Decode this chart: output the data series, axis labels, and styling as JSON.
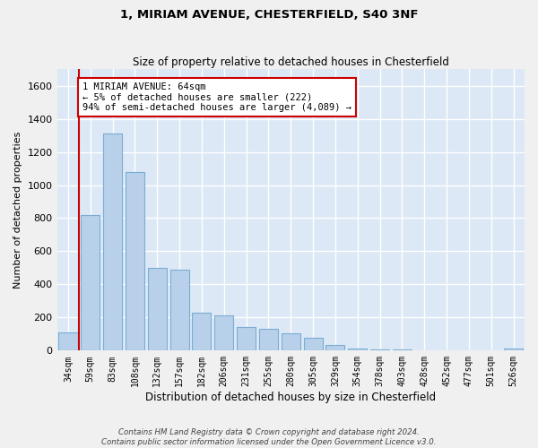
{
  "title": "1, MIRIAM AVENUE, CHESTERFIELD, S40 3NF",
  "subtitle": "Size of property relative to detached houses in Chesterfield",
  "xlabel": "Distribution of detached houses by size in Chesterfield",
  "ylabel": "Number of detached properties",
  "categories": [
    "34sqm",
    "59sqm",
    "83sqm",
    "108sqm",
    "132sqm",
    "157sqm",
    "182sqm",
    "206sqm",
    "231sqm",
    "255sqm",
    "280sqm",
    "305sqm",
    "329sqm",
    "354sqm",
    "378sqm",
    "403sqm",
    "428sqm",
    "452sqm",
    "477sqm",
    "501sqm",
    "526sqm"
  ],
  "values": [
    110,
    820,
    1310,
    1080,
    500,
    490,
    230,
    215,
    140,
    130,
    105,
    75,
    35,
    10,
    8,
    5,
    2,
    1,
    1,
    1,
    15
  ],
  "bar_color": "#b8d0ea",
  "bar_edge_color": "#7aadd4",
  "vline_color": "#cc0000",
  "vline_x": 0.5,
  "annotation_text": "1 MIRIAM AVENUE: 64sqm\n← 5% of detached houses are smaller (222)\n94% of semi-detached houses are larger (4,089) →",
  "annotation_box_color": "#ffffff",
  "annotation_box_edge": "#cc0000",
  "ylim": [
    0,
    1700
  ],
  "yticks": [
    0,
    200,
    400,
    600,
    800,
    1000,
    1200,
    1400,
    1600
  ],
  "background_color": "#dce8f5",
  "grid_color": "#ffffff",
  "fig_background": "#f0f0f0",
  "footer1": "Contains HM Land Registry data © Crown copyright and database right 2024.",
  "footer2": "Contains public sector information licensed under the Open Government Licence v3.0."
}
